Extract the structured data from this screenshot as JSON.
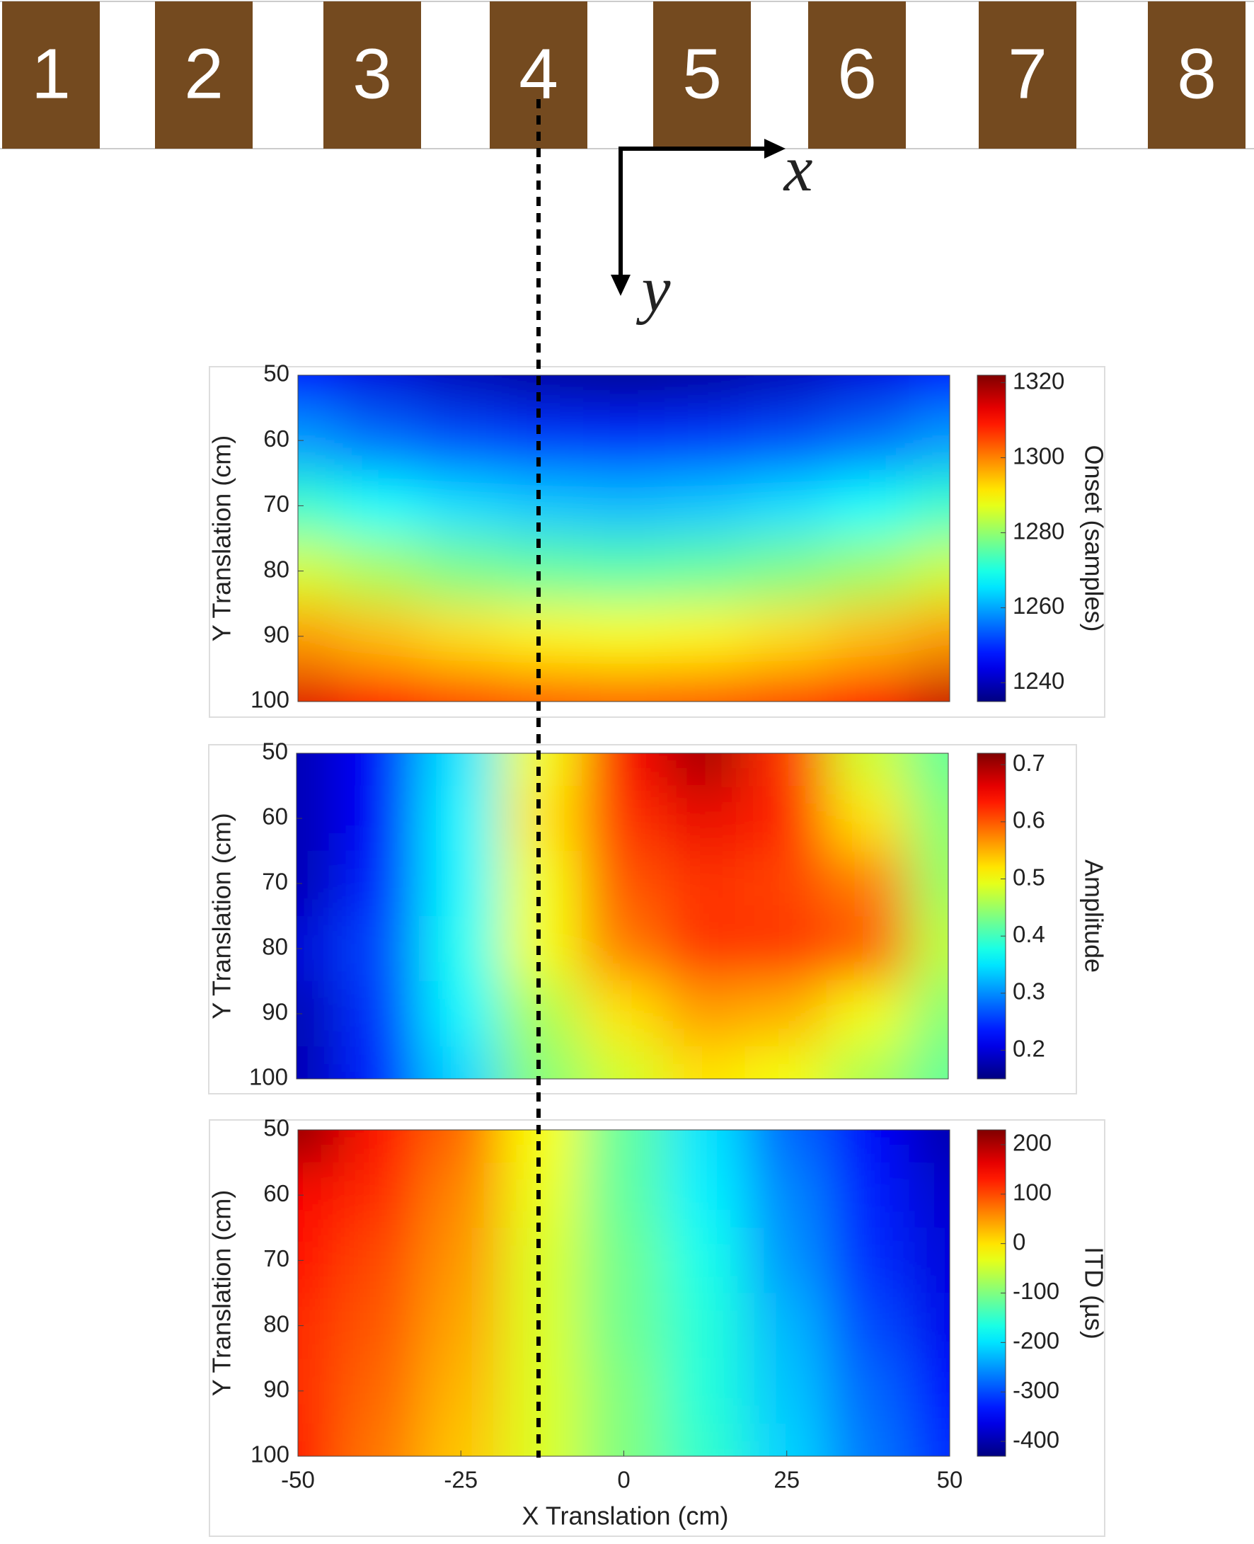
{
  "speakers": {
    "labels": [
      "1",
      "2",
      "3",
      "4",
      "5",
      "6",
      "7",
      "8"
    ],
    "color": "#744a1f"
  },
  "axes_diagram": {
    "x_label": "x",
    "y_label": "y"
  },
  "chart_data": [
    {
      "type": "heatmap",
      "ylabel": "Y Translation (cm)",
      "colormap": "jet",
      "y_direction": "reverse",
      "x": [
        -50,
        -37.5,
        -25,
        -12.5,
        0,
        12.5,
        25,
        37.5,
        50
      ],
      "y": [
        50,
        60,
        70,
        80,
        90,
        100
      ],
      "xlim": [
        -50,
        50
      ],
      "ylim": [
        50,
        100
      ],
      "yticks": [
        50,
        60,
        70,
        80,
        90,
        100
      ],
      "values": [
        [
          1246,
          1243,
          1240,
          1238,
          1237,
          1238,
          1240,
          1243,
          1247
        ],
        [
          1259,
          1255,
          1252,
          1250,
          1249,
          1250,
          1252,
          1255,
          1259
        ],
        [
          1272,
          1268,
          1265,
          1263,
          1262,
          1263,
          1265,
          1268,
          1272
        ],
        [
          1286,
          1282,
          1278,
          1276,
          1275,
          1276,
          1278,
          1281,
          1285
        ],
        [
          1298,
          1295,
          1292,
          1290,
          1289,
          1290,
          1292,
          1295,
          1298
        ],
        [
          1314,
          1310,
          1306,
          1304,
          1303,
          1304,
          1306,
          1310,
          1316
        ]
      ],
      "colorbar": {
        "label": "Onset (samples)",
        "lim": [
          1235,
          1322
        ],
        "ticks": [
          1240,
          1260,
          1280,
          1300,
          1320
        ]
      }
    },
    {
      "type": "heatmap",
      "ylabel": "Y Translation (cm)",
      "colormap": "jet",
      "y_direction": "reverse",
      "x": [
        -50,
        -37.5,
        -25,
        -12.5,
        0,
        12.5,
        25,
        37.5,
        50
      ],
      "y": [
        50,
        60,
        70,
        80,
        90,
        100
      ],
      "xlim": [
        -50,
        50
      ],
      "ylim": [
        50,
        100
      ],
      "yticks": [
        50,
        60,
        70,
        80,
        90,
        100
      ],
      "values": [
        [
          0.18,
          0.22,
          0.35,
          0.5,
          0.65,
          0.7,
          0.62,
          0.48,
          0.42
        ],
        [
          0.18,
          0.22,
          0.36,
          0.52,
          0.62,
          0.66,
          0.63,
          0.52,
          0.44
        ],
        [
          0.18,
          0.24,
          0.36,
          0.5,
          0.6,
          0.62,
          0.61,
          0.58,
          0.45
        ],
        [
          0.2,
          0.26,
          0.37,
          0.5,
          0.58,
          0.62,
          0.62,
          0.6,
          0.47
        ],
        [
          0.18,
          0.25,
          0.36,
          0.46,
          0.52,
          0.56,
          0.55,
          0.5,
          0.44
        ],
        [
          0.18,
          0.24,
          0.34,
          0.44,
          0.48,
          0.52,
          0.5,
          0.46,
          0.42
        ]
      ],
      "colorbar": {
        "label": "Amplitude",
        "lim": [
          0.15,
          0.72
        ],
        "ticks": [
          0.2,
          0.3,
          0.4,
          0.5,
          0.6,
          0.7
        ]
      }
    },
    {
      "type": "heatmap",
      "ylabel": "Y Translation (cm)",
      "xlabel": "X Translation (cm)",
      "colormap": "jet",
      "y_direction": "reverse",
      "x": [
        -50,
        -37.5,
        -25,
        -12.5,
        0,
        12.5,
        25,
        37.5,
        50
      ],
      "y": [
        50,
        60,
        70,
        80,
        90,
        100
      ],
      "xlim": [
        -50,
        50
      ],
      "ylim": [
        50,
        100
      ],
      "xticks": [
        -50,
        -25,
        0,
        25,
        50
      ],
      "yticks": [
        50,
        60,
        70,
        80,
        90,
        100
      ],
      "values": [
        [
          220,
          140,
          80,
          -20,
          -120,
          -200,
          -280,
          -350,
          -400
        ],
        [
          150,
          120,
          60,
          -30,
          -120,
          -190,
          -260,
          -330,
          -380
        ],
        [
          140,
          100,
          50,
          -40,
          -110,
          -170,
          -250,
          -320,
          -370
        ],
        [
          120,
          90,
          40,
          -40,
          -110,
          -160,
          -230,
          -300,
          -360
        ],
        [
          120,
          80,
          30,
          -40,
          -100,
          -160,
          -220,
          -280,
          -340
        ],
        [
          130,
          70,
          20,
          -40,
          -100,
          -150,
          -210,
          -270,
          -320
        ]
      ],
      "colorbar": {
        "label": "ITD (µs)",
        "lim": [
          -430,
          230
        ],
        "ticks": [
          -400,
          -300,
          -200,
          -100,
          0,
          100,
          200
        ]
      }
    }
  ]
}
